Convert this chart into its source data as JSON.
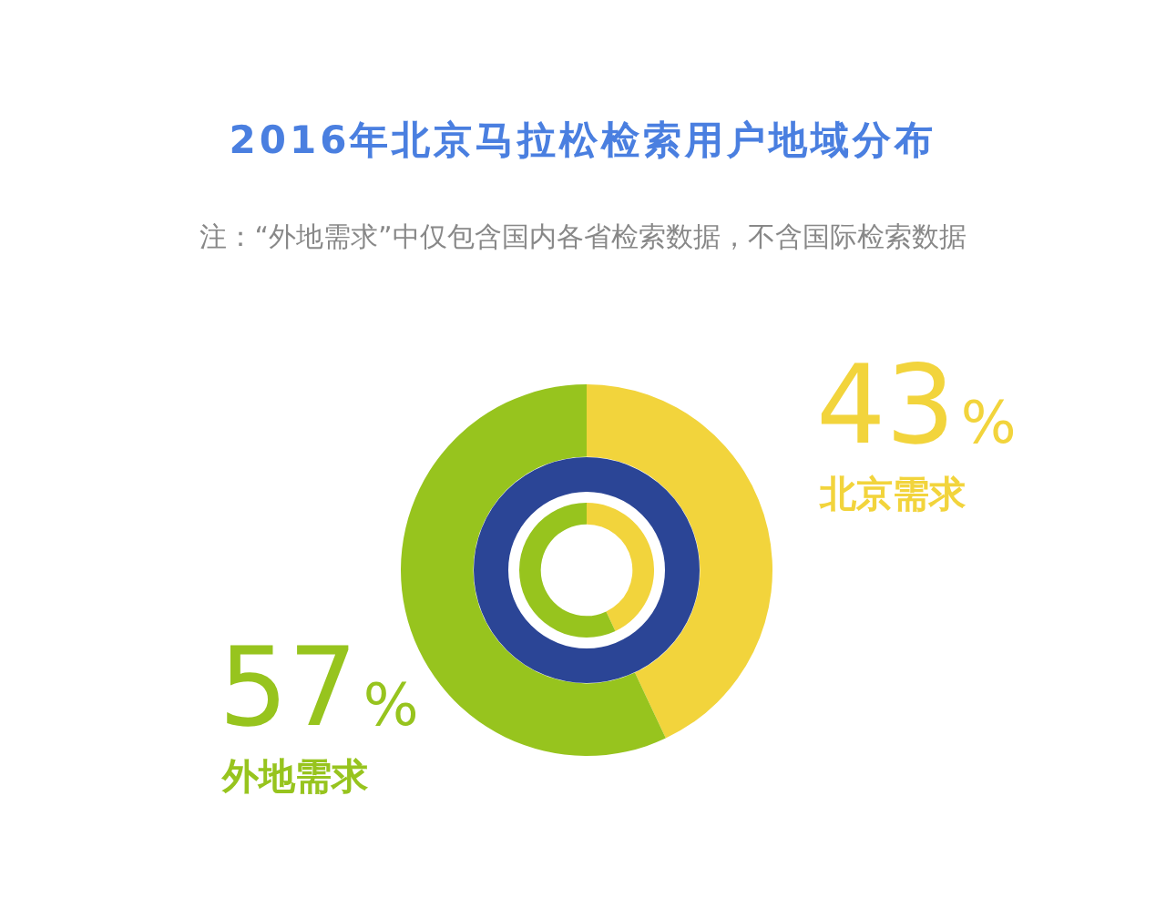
{
  "chart_data": {
    "type": "donut",
    "title": "2016年北京马拉松检索用户地域分布",
    "annotations": [
      "注：“外地需求”中仅包含国内各省检索数据，不含国际检索数据"
    ],
    "categories": [
      "北京需求",
      "外地需求"
    ],
    "colors": [
      "#f2d43c",
      "#97c41e"
    ],
    "series": [
      {
        "values": [
          43,
          57
        ],
        "value_labels": [
          "43%",
          "57%"
        ]
      },
      {
        "values": [
          43,
          57
        ]
      }
    ],
    "legend": false
  }
}
